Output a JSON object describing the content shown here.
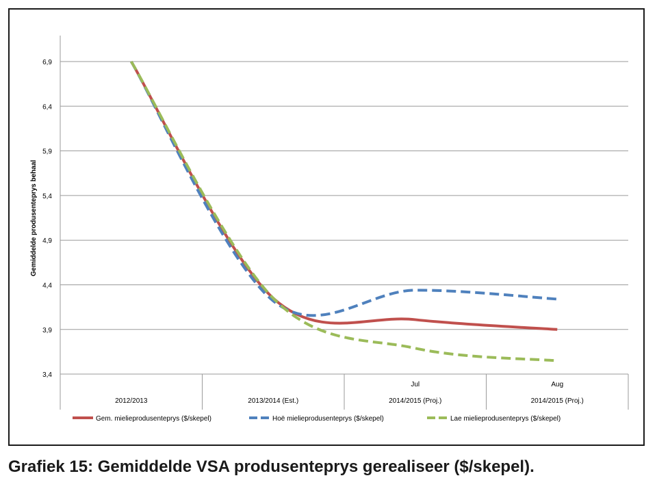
{
  "caption": "Grafiek 15: Gemiddelde VSA produsenteprys gerealiseer ($/skepel).",
  "chart_data": {
    "type": "line",
    "ylabel": "Gemiddelde produsenteprys behaal",
    "ylim": [
      3.4,
      7.2
    ],
    "yticks": [
      "6,9",
      "6,4",
      "5,9",
      "5,4",
      "4,9",
      "4,4",
      "3,9",
      "3,4"
    ],
    "ytick_values": [
      6.9,
      6.4,
      5.9,
      5.4,
      4.9,
      4.4,
      3.9,
      3.4
    ],
    "grid": true,
    "legend_position": "bottom",
    "categories": [
      {
        "top": "",
        "bottom": "2012/2013"
      },
      {
        "top": "",
        "bottom": "2013/2014  (Est.)"
      },
      {
        "top": "Jul",
        "bottom": "2014/2015  (Proj.)"
      },
      {
        "top": "Aug",
        "bottom": "2014/2015  (Proj.)"
      }
    ],
    "series": [
      {
        "name": "Gem. mielieprodusenteprys ($/skepel)",
        "color": "#c0504d",
        "dash": "solid",
        "values": [
          6.9,
          4.25,
          4.01,
          3.9
        ]
      },
      {
        "name": "Hoë mielieprodusenteprys ($/skepel)",
        "color": "#4f81bd",
        "dash": "dashed",
        "values": [
          6.9,
          4.22,
          4.34,
          4.24
        ]
      },
      {
        "name": "Lae mielieprodusenteprys ($/skepel)",
        "color": "#9bbb59",
        "dash": "dashed",
        "values": [
          6.9,
          4.25,
          3.69,
          3.55
        ]
      }
    ]
  }
}
